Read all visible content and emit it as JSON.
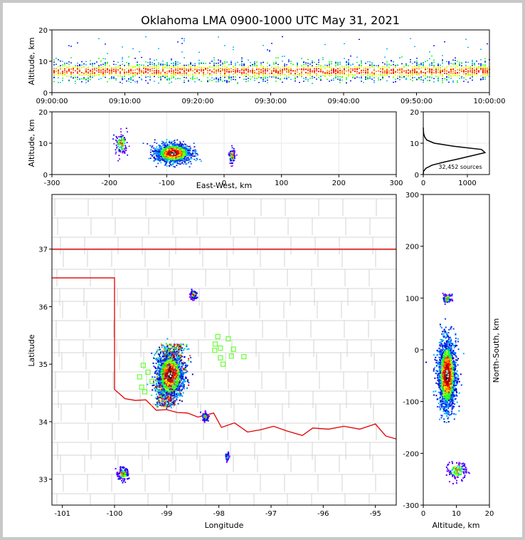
{
  "chart_data": [
    {
      "type": "scatter",
      "panel": "altitude-vs-time",
      "title": "Oklahoma LMA 0900-1000 UTC May 31, 2021",
      "xlabel": "",
      "ylabel": "Altitude, km",
      "xlim": [
        "09:00:00",
        "10:00:00"
      ],
      "ylim": [
        0,
        20
      ],
      "x_ticks": [
        "09:00:00",
        "09:10:00",
        "09:20:00",
        "09:30:00",
        "09:40:00",
        "09:50:00",
        "10:00:00"
      ],
      "y_ticks": [
        0,
        10,
        20
      ],
      "density_band_km": [
        3,
        12
      ],
      "density_center_km": 7
    },
    {
      "type": "scatter",
      "panel": "altitude-vs-east-west",
      "xlabel": "East-West, km",
      "ylabel": "Altitude, km",
      "xlim": [
        -300,
        300
      ],
      "ylim": [
        0,
        20
      ],
      "x_ticks": [
        -300,
        -200,
        -100,
        0,
        100,
        200,
        300
      ],
      "y_ticks": [
        0,
        10,
        20
      ],
      "clusters": [
        {
          "x": -90,
          "y": 7,
          "spread_x": 28,
          "spread_y": 2.5,
          "weight": "high"
        },
        {
          "x": -180,
          "y": 10,
          "spread_x": 10,
          "spread_y": 3,
          "weight": "low"
        },
        {
          "x": 13,
          "y": 6,
          "spread_x": 4,
          "spread_y": 2,
          "weight": "low"
        }
      ]
    },
    {
      "type": "line",
      "panel": "altitude-histogram",
      "xlim": [
        0,
        1500
      ],
      "ylim": [
        0,
        20
      ],
      "x_ticks": [
        0,
        1000
      ],
      "y_ticks": [
        0,
        10,
        20
      ],
      "annotation": "32,452 sources",
      "profile": [
        [
          0,
          0
        ],
        [
          5,
          1
        ],
        [
          60,
          2
        ],
        [
          200,
          3
        ],
        [
          480,
          4
        ],
        [
          800,
          5
        ],
        [
          1100,
          6
        ],
        [
          1400,
          7
        ],
        [
          1320,
          8
        ],
        [
          700,
          9
        ],
        [
          250,
          10
        ],
        [
          80,
          11
        ],
        [
          30,
          12
        ],
        [
          10,
          13
        ],
        [
          3,
          14
        ],
        [
          0,
          15
        ]
      ]
    },
    {
      "type": "map",
      "panel": "plan-view",
      "xlabel": "Longitude",
      "ylabel": "Latitude",
      "xlim": [
        -101.2,
        -94.6
      ],
      "ylim": [
        32.55,
        37.95
      ],
      "x_ticks": [
        -101,
        -100,
        -99,
        -98,
        -97,
        -96,
        -95
      ],
      "y_ticks": [
        33,
        34,
        35,
        36,
        37
      ],
      "stations": [
        {
          "lon": -98.02,
          "lat": 35.48
        },
        {
          "lon": -97.82,
          "lat": 35.44
        },
        {
          "lon": -98.07,
          "lat": 35.35
        },
        {
          "lon": -97.97,
          "lat": 35.28
        },
        {
          "lon": -98.08,
          "lat": 35.24
        },
        {
          "lon": -97.72,
          "lat": 35.26
        },
        {
          "lon": -97.76,
          "lat": 35.14
        },
        {
          "lon": -97.52,
          "lat": 35.13
        },
        {
          "lon": -97.97,
          "lat": 35.11
        },
        {
          "lon": -97.92,
          "lat": 35.0
        },
        {
          "lon": -99.45,
          "lat": 34.98
        },
        {
          "lon": -99.36,
          "lat": 34.86
        },
        {
          "lon": -99.52,
          "lat": 34.78
        },
        {
          "lon": -99.28,
          "lat": 34.7
        },
        {
          "lon": -99.48,
          "lat": 34.6
        },
        {
          "lon": -99.42,
          "lat": 34.52
        }
      ],
      "clusters": [
        {
          "lon": -98.95,
          "lat": 34.82,
          "spread_lon": 0.22,
          "spread_lat": 0.32,
          "weight": "high"
        },
        {
          "lon": -99.85,
          "lat": 33.1,
          "spread_lon": 0.1,
          "spread_lat": 0.1,
          "weight": "low"
        },
        {
          "lon": -98.5,
          "lat": 36.22,
          "spread_lon": 0.05,
          "spread_lat": 0.06,
          "weight": "low"
        },
        {
          "lon": -98.27,
          "lat": 34.1,
          "spread_lon": 0.05,
          "spread_lat": 0.06,
          "weight": "low"
        },
        {
          "lon": -97.85,
          "lat": 33.4,
          "spread_lon": 0.02,
          "spread_lat": 0.05,
          "weight": "low"
        }
      ]
    },
    {
      "type": "scatter",
      "panel": "north-south-vs-altitude",
      "xlabel": "Altitude, km",
      "ylabel": "North-South, km",
      "xlim": [
        0,
        20
      ],
      "ylim": [
        -300,
        300
      ],
      "x_ticks": [
        0,
        10,
        20
      ],
      "y_ticks": [
        -300,
        -200,
        -100,
        0,
        100,
        200,
        300
      ],
      "clusters": [
        {
          "alt": 7,
          "ns": -48,
          "spread_alt": 2.2,
          "spread_ns": 55,
          "weight": "high"
        },
        {
          "alt": 7,
          "ns": 100,
          "spread_alt": 1,
          "spread_ns": 8,
          "weight": "low"
        },
        {
          "alt": 10,
          "ns": -232,
          "spread_alt": 2.5,
          "spread_ns": 15,
          "weight": "low"
        }
      ]
    }
  ]
}
